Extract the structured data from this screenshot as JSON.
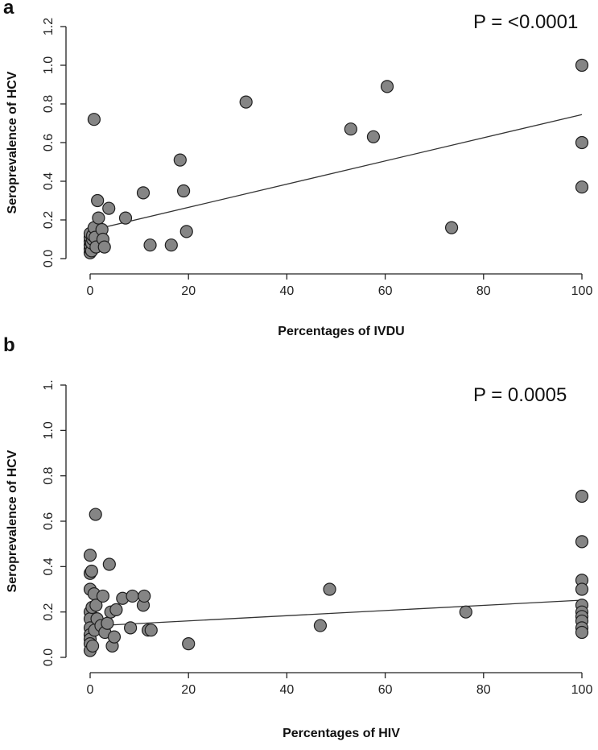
{
  "chart_data": [
    {
      "type": "scatter",
      "panel_label": "a",
      "annotation": "P = <0.0001",
      "xlabel": "Percentages of IVDU",
      "ylabel": "Seroprevalence of HCV",
      "xlim": [
        0,
        100
      ],
      "ylim": [
        0,
        1.2
      ],
      "x_ticks": [
        "0",
        "20",
        "40",
        "60",
        "80",
        "100"
      ],
      "y_ticks": [
        "0.0",
        "0.2",
        "0.4",
        "0.6",
        "0.8",
        "1.0",
        "1.2"
      ],
      "fit_line": {
        "x": [
          0,
          100
        ],
        "y": [
          0.145,
          0.745
        ]
      },
      "points": [
        {
          "x": 0,
          "y": 0.03
        },
        {
          "x": 0,
          "y": 0.05
        },
        {
          "x": 0,
          "y": 0.07
        },
        {
          "x": 0,
          "y": 0.09
        },
        {
          "x": 0,
          "y": 0.11
        },
        {
          "x": 0,
          "y": 0.13
        },
        {
          "x": 0.3,
          "y": 0.04
        },
        {
          "x": 0.3,
          "y": 0.08
        },
        {
          "x": 0.5,
          "y": 0.1
        },
        {
          "x": 0.5,
          "y": 0.12
        },
        {
          "x": 0.8,
          "y": 0.72
        },
        {
          "x": 0.8,
          "y": 0.16
        },
        {
          "x": 1,
          "y": 0.11
        },
        {
          "x": 1.2,
          "y": 0.06
        },
        {
          "x": 1.5,
          "y": 0.3
        },
        {
          "x": 1.7,
          "y": 0.21
        },
        {
          "x": 2.4,
          "y": 0.15
        },
        {
          "x": 2.6,
          "y": 0.1
        },
        {
          "x": 2.9,
          "y": 0.06
        },
        {
          "x": 3.8,
          "y": 0.26
        },
        {
          "x": 7.2,
          "y": 0.21
        },
        {
          "x": 10.8,
          "y": 0.34
        },
        {
          "x": 12.2,
          "y": 0.07
        },
        {
          "x": 16.5,
          "y": 0.07
        },
        {
          "x": 18.3,
          "y": 0.51
        },
        {
          "x": 19,
          "y": 0.35
        },
        {
          "x": 19.6,
          "y": 0.14
        },
        {
          "x": 31.7,
          "y": 0.81
        },
        {
          "x": 53,
          "y": 0.67
        },
        {
          "x": 57.6,
          "y": 0.63
        },
        {
          "x": 60.4,
          "y": 0.89
        },
        {
          "x": 73.5,
          "y": 0.16
        },
        {
          "x": 100,
          "y": 1.0
        },
        {
          "x": 100,
          "y": 0.6
        },
        {
          "x": 100,
          "y": 0.37
        }
      ]
    },
    {
      "type": "scatter",
      "panel_label": "b",
      "annotation": "P = 0.0005",
      "xlabel": "Percentages of HIV",
      "ylabel": "Seroprevalence of HCV",
      "xlim": [
        0,
        100
      ],
      "ylim": [
        0,
        1.2
      ],
      "x_ticks": [
        "0",
        "20",
        "40",
        "60",
        "80",
        "100"
      ],
      "y_ticks": [
        "0.0",
        "0.2",
        "0.4",
        "0.6",
        "0.8",
        "1.0",
        "1."
      ],
      "fit_line": {
        "x": [
          0,
          100
        ],
        "y": [
          0.138,
          0.252
        ]
      },
      "points": [
        {
          "x": 0,
          "y": 0.45
        },
        {
          "x": 0,
          "y": 0.37
        },
        {
          "x": 0,
          "y": 0.3
        },
        {
          "x": 0,
          "y": 0.2
        },
        {
          "x": 0,
          "y": 0.17
        },
        {
          "x": 0,
          "y": 0.13
        },
        {
          "x": 0,
          "y": 0.1
        },
        {
          "x": 0,
          "y": 0.08
        },
        {
          "x": 0,
          "y": 0.06
        },
        {
          "x": 0,
          "y": 0.03
        },
        {
          "x": 0.3,
          "y": 0.38
        },
        {
          "x": 0.4,
          "y": 0.22
        },
        {
          "x": 0.5,
          "y": 0.05
        },
        {
          "x": 0.8,
          "y": 0.28
        },
        {
          "x": 0.9,
          "y": 0.12
        },
        {
          "x": 1.1,
          "y": 0.63
        },
        {
          "x": 1.2,
          "y": 0.23
        },
        {
          "x": 1.4,
          "y": 0.17
        },
        {
          "x": 2.2,
          "y": 0.14
        },
        {
          "x": 2.6,
          "y": 0.27
        },
        {
          "x": 3,
          "y": 0.11
        },
        {
          "x": 3.5,
          "y": 0.15
        },
        {
          "x": 3.9,
          "y": 0.41
        },
        {
          "x": 4.2,
          "y": 0.2
        },
        {
          "x": 4.5,
          "y": 0.05
        },
        {
          "x": 4.9,
          "y": 0.09
        },
        {
          "x": 5.3,
          "y": 0.21
        },
        {
          "x": 6.6,
          "y": 0.26
        },
        {
          "x": 8.2,
          "y": 0.13
        },
        {
          "x": 8.6,
          "y": 0.27
        },
        {
          "x": 10.8,
          "y": 0.23
        },
        {
          "x": 11,
          "y": 0.27
        },
        {
          "x": 11.8,
          "y": 0.12
        },
        {
          "x": 12.4,
          "y": 0.12
        },
        {
          "x": 20,
          "y": 0.06
        },
        {
          "x": 46.8,
          "y": 0.14
        },
        {
          "x": 48.7,
          "y": 0.3
        },
        {
          "x": 76.4,
          "y": 0.2
        },
        {
          "x": 100,
          "y": 0.71
        },
        {
          "x": 100,
          "y": 0.51
        },
        {
          "x": 100,
          "y": 0.34
        },
        {
          "x": 100,
          "y": 0.3
        },
        {
          "x": 100,
          "y": 0.23
        },
        {
          "x": 100,
          "y": 0.2
        },
        {
          "x": 100,
          "y": 0.18
        },
        {
          "x": 100,
          "y": 0.16
        },
        {
          "x": 100,
          "y": 0.13
        },
        {
          "x": 100,
          "y": 0.11
        }
      ]
    }
  ]
}
